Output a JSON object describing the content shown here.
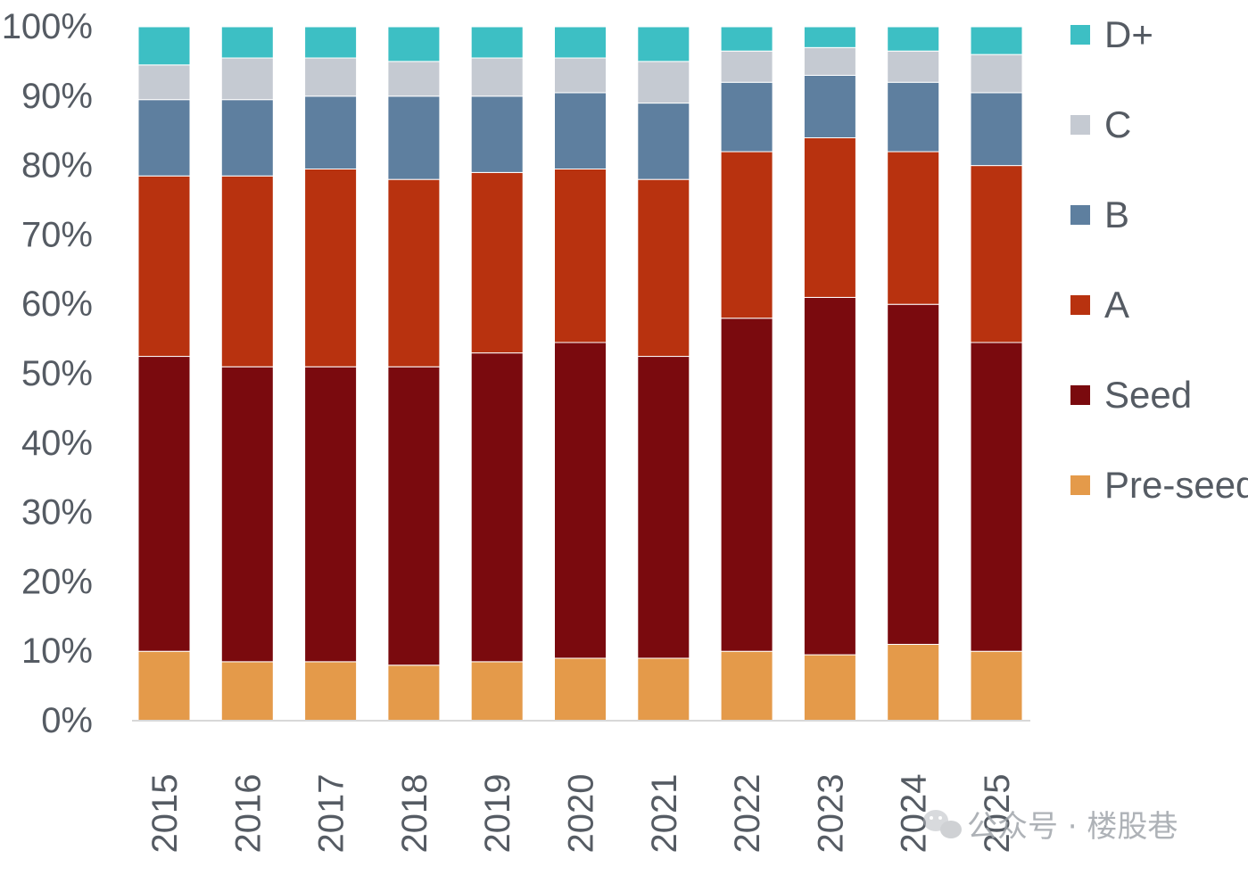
{
  "chart_data": {
    "type": "bar",
    "stacked": true,
    "title": "",
    "xlabel": "",
    "ylabel": "",
    "ylim": [
      0,
      100
    ],
    "y_ticks": [
      "0%",
      "10%",
      "20%",
      "30%",
      "40%",
      "50%",
      "60%",
      "70%",
      "80%",
      "90%",
      "100%"
    ],
    "grid": false,
    "legend_position": "right",
    "categories": [
      "2015",
      "2016",
      "2017",
      "2018",
      "2019",
      "2020",
      "2021",
      "2022",
      "2023",
      "2024",
      "2025"
    ],
    "series": [
      {
        "name": "Pre-seed",
        "color": "#E49A4A",
        "values": [
          10,
          8.5,
          8.5,
          8,
          8.5,
          9,
          9,
          10,
          9.5,
          11,
          10
        ]
      },
      {
        "name": "Seed",
        "color": "#7A0A0E",
        "values": [
          42.5,
          42.5,
          42.5,
          43,
          44.5,
          45.5,
          43.5,
          48,
          51.5,
          49,
          44.5
        ]
      },
      {
        "name": "A",
        "color": "#B8320F",
        "values": [
          26,
          27.5,
          28.5,
          27,
          26,
          25,
          25.5,
          24,
          23,
          22,
          25.5
        ]
      },
      {
        "name": "B",
        "color": "#5E7F9F",
        "values": [
          11,
          11,
          10.5,
          12,
          11,
          11,
          11,
          10,
          9,
          10,
          10.5
        ]
      },
      {
        "name": "C",
        "color": "#C5CAD2",
        "values": [
          5,
          6,
          5.5,
          5,
          5.5,
          5,
          6,
          4.5,
          4,
          4.5,
          5.5
        ]
      },
      {
        "name": "D+",
        "color": "#3DBFC4",
        "values": [
          5.5,
          4.5,
          4.5,
          5,
          4.5,
          4.5,
          5,
          3.5,
          3,
          3.5,
          4
        ]
      }
    ]
  },
  "legend_items": [
    "D+",
    "C",
    "B",
    "A",
    "Seed",
    "Pre-seed"
  ],
  "watermark": {
    "text": "公众号 · 楼股巷",
    "icon": "wechat-icon"
  }
}
